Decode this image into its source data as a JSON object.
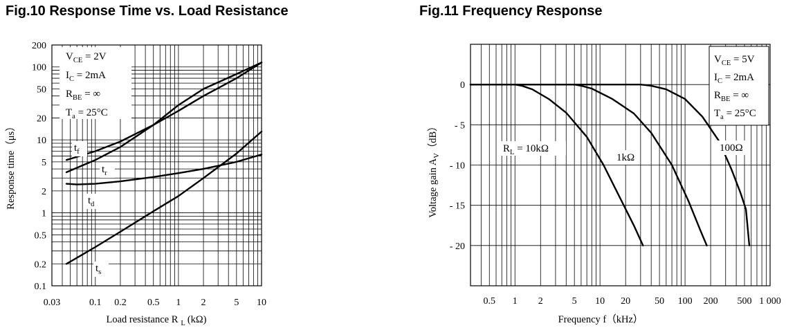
{
  "chart_data": [
    {
      "type": "line",
      "title": "Fig.10 Response Time vs. Load Resistance",
      "xlabel": "Load resistance R",
      "xlabel_sub": "L",
      "xlabel_unit": "(kΩ)",
      "ylabel": "Response time（μs）",
      "x_scale": "log",
      "y_scale": "log",
      "xlim": [
        0.03,
        10
      ],
      "ylim": [
        0.1,
        200
      ],
      "grid": true,
      "xticks": [
        {
          "v": 0.03,
          "label": "0.03"
        },
        {
          "v": 0.1,
          "label": "0.1"
        },
        {
          "v": 0.2,
          "label": "0.2"
        },
        {
          "v": 0.5,
          "label": "0.5"
        },
        {
          "v": 1,
          "label": "1"
        },
        {
          "v": 2,
          "label": "2"
        },
        {
          "v": 5,
          "label": "5"
        },
        {
          "v": 10,
          "label": "10"
        }
      ],
      "yticks": [
        {
          "v": 0.1,
          "label": "0.1"
        },
        {
          "v": 0.2,
          "label": "0.2"
        },
        {
          "v": 0.5,
          "label": "0.5"
        },
        {
          "v": 1,
          "label": "1"
        },
        {
          "v": 2,
          "label": "2"
        },
        {
          "v": 5,
          "label": "5"
        },
        {
          "v": 10,
          "label": "10"
        },
        {
          "v": 20,
          "label": "20"
        },
        {
          "v": 50,
          "label": "50"
        },
        {
          "v": 100,
          "label": "100"
        },
        {
          "v": 200,
          "label": "200"
        }
      ],
      "conditions": [
        {
          "main": "V",
          "sub": "CE",
          "rest": " = 2V"
        },
        {
          "main": "I",
          "sub": "C",
          "rest": " = 2mA"
        },
        {
          "main": "R",
          "sub": "BE",
          "rest": " = ∞"
        },
        {
          "main": "T",
          "sub": "a",
          "rest": " = 25°C"
        }
      ],
      "series": [
        {
          "name": "t",
          "sub": "f",
          "x": [
            0.045,
            0.1,
            0.2,
            0.5,
            1,
            2,
            5,
            10
          ],
          "y": [
            5.3,
            7.0,
            9.5,
            16,
            25,
            40,
            70,
            115
          ]
        },
        {
          "name": "t",
          "sub": "r",
          "x": [
            0.045,
            0.1,
            0.2,
            0.5,
            1,
            2,
            5,
            10
          ],
          "y": [
            3.6,
            5.3,
            8.0,
            16,
            30,
            50,
            80,
            115
          ]
        },
        {
          "name": "t",
          "sub": "d",
          "x": [
            0.045,
            0.06,
            0.1,
            0.2,
            0.5,
            1,
            2,
            5,
            10
          ],
          "y": [
            2.5,
            2.45,
            2.5,
            2.7,
            3.1,
            3.5,
            4.0,
            5.0,
            6.3
          ]
        },
        {
          "name": "t",
          "sub": "s",
          "x": [
            0.045,
            0.1,
            0.2,
            0.5,
            1,
            2,
            5,
            10
          ],
          "y": [
            0.2,
            0.34,
            0.55,
            1.05,
            1.7,
            3.0,
            6.5,
            13
          ]
        }
      ]
    },
    {
      "type": "line",
      "title": "Fig.11 Frequency Response",
      "xlabel": "Frequency f（kHz）",
      "ylabel": "Voltage gain A",
      "ylabel_sub": "V",
      "ylabel_unit": "（dB）",
      "x_scale": "log",
      "y_scale": "linear",
      "xlim": [
        0.3,
        1000
      ],
      "ylim": [
        -25,
        5
      ],
      "grid": true,
      "xticks": [
        {
          "v": 0.5,
          "label": "0.5"
        },
        {
          "v": 1,
          "label": "1"
        },
        {
          "v": 2,
          "label": "2"
        },
        {
          "v": 5,
          "label": "5"
        },
        {
          "v": 10,
          "label": "10"
        },
        {
          "v": 20,
          "label": "20"
        },
        {
          "v": 50,
          "label": "50"
        },
        {
          "v": 100,
          "label": "100"
        },
        {
          "v": 200,
          "label": "200"
        },
        {
          "v": 500,
          "label": "500"
        },
        {
          "v": 1000,
          "label": "1 000"
        }
      ],
      "yticks": [
        {
          "v": 0,
          "label": "0"
        },
        {
          "v": -5,
          "label": "- 5"
        },
        {
          "v": -10,
          "label": "- 10"
        },
        {
          "v": -15,
          "label": "- 15"
        },
        {
          "v": -20,
          "label": "- 20"
        }
      ],
      "conditions": [
        {
          "main": "V",
          "sub": "CE",
          "rest": " = 5V"
        },
        {
          "main": "I",
          "sub": "C",
          "rest": " = 2mA"
        },
        {
          "main": "R",
          "sub": "BE",
          "rest": " = ∞"
        },
        {
          "main": "T",
          "sub": "a",
          "rest": " = 25°C"
        }
      ],
      "series": [
        {
          "name": "10kΩ",
          "label_main": "R",
          "label_sub": "L",
          "label_rest": " = 10kΩ",
          "x": [
            0.3,
            1,
            1.2,
            1.6,
            2.5,
            4,
            7,
            11,
            18,
            25,
            32
          ],
          "y": [
            0,
            0,
            -0.15,
            -0.6,
            -1.8,
            -3.5,
            -6.5,
            -10,
            -14.5,
            -17.5,
            -20
          ]
        },
        {
          "name": "1kΩ",
          "label_main": "1kΩ",
          "label_sub": "",
          "label_rest": "",
          "x": [
            0.3,
            5,
            6,
            8,
            14,
            25,
            40,
            70,
            110,
            150,
            180
          ],
          "y": [
            0,
            0,
            -0.15,
            -0.5,
            -1.8,
            -3.6,
            -6,
            -10,
            -14.5,
            -18,
            -20
          ]
        },
        {
          "name": "100Ω",
          "label_main": "100Ω",
          "label_sub": "",
          "label_rest": "",
          "x": [
            0.3,
            30,
            40,
            60,
            100,
            160,
            250,
            350,
            450,
            520,
            570
          ],
          "y": [
            0,
            0,
            -0.15,
            -0.6,
            -1.8,
            -4,
            -7,
            -10.5,
            -13.5,
            -15.5,
            -20
          ]
        }
      ]
    }
  ]
}
